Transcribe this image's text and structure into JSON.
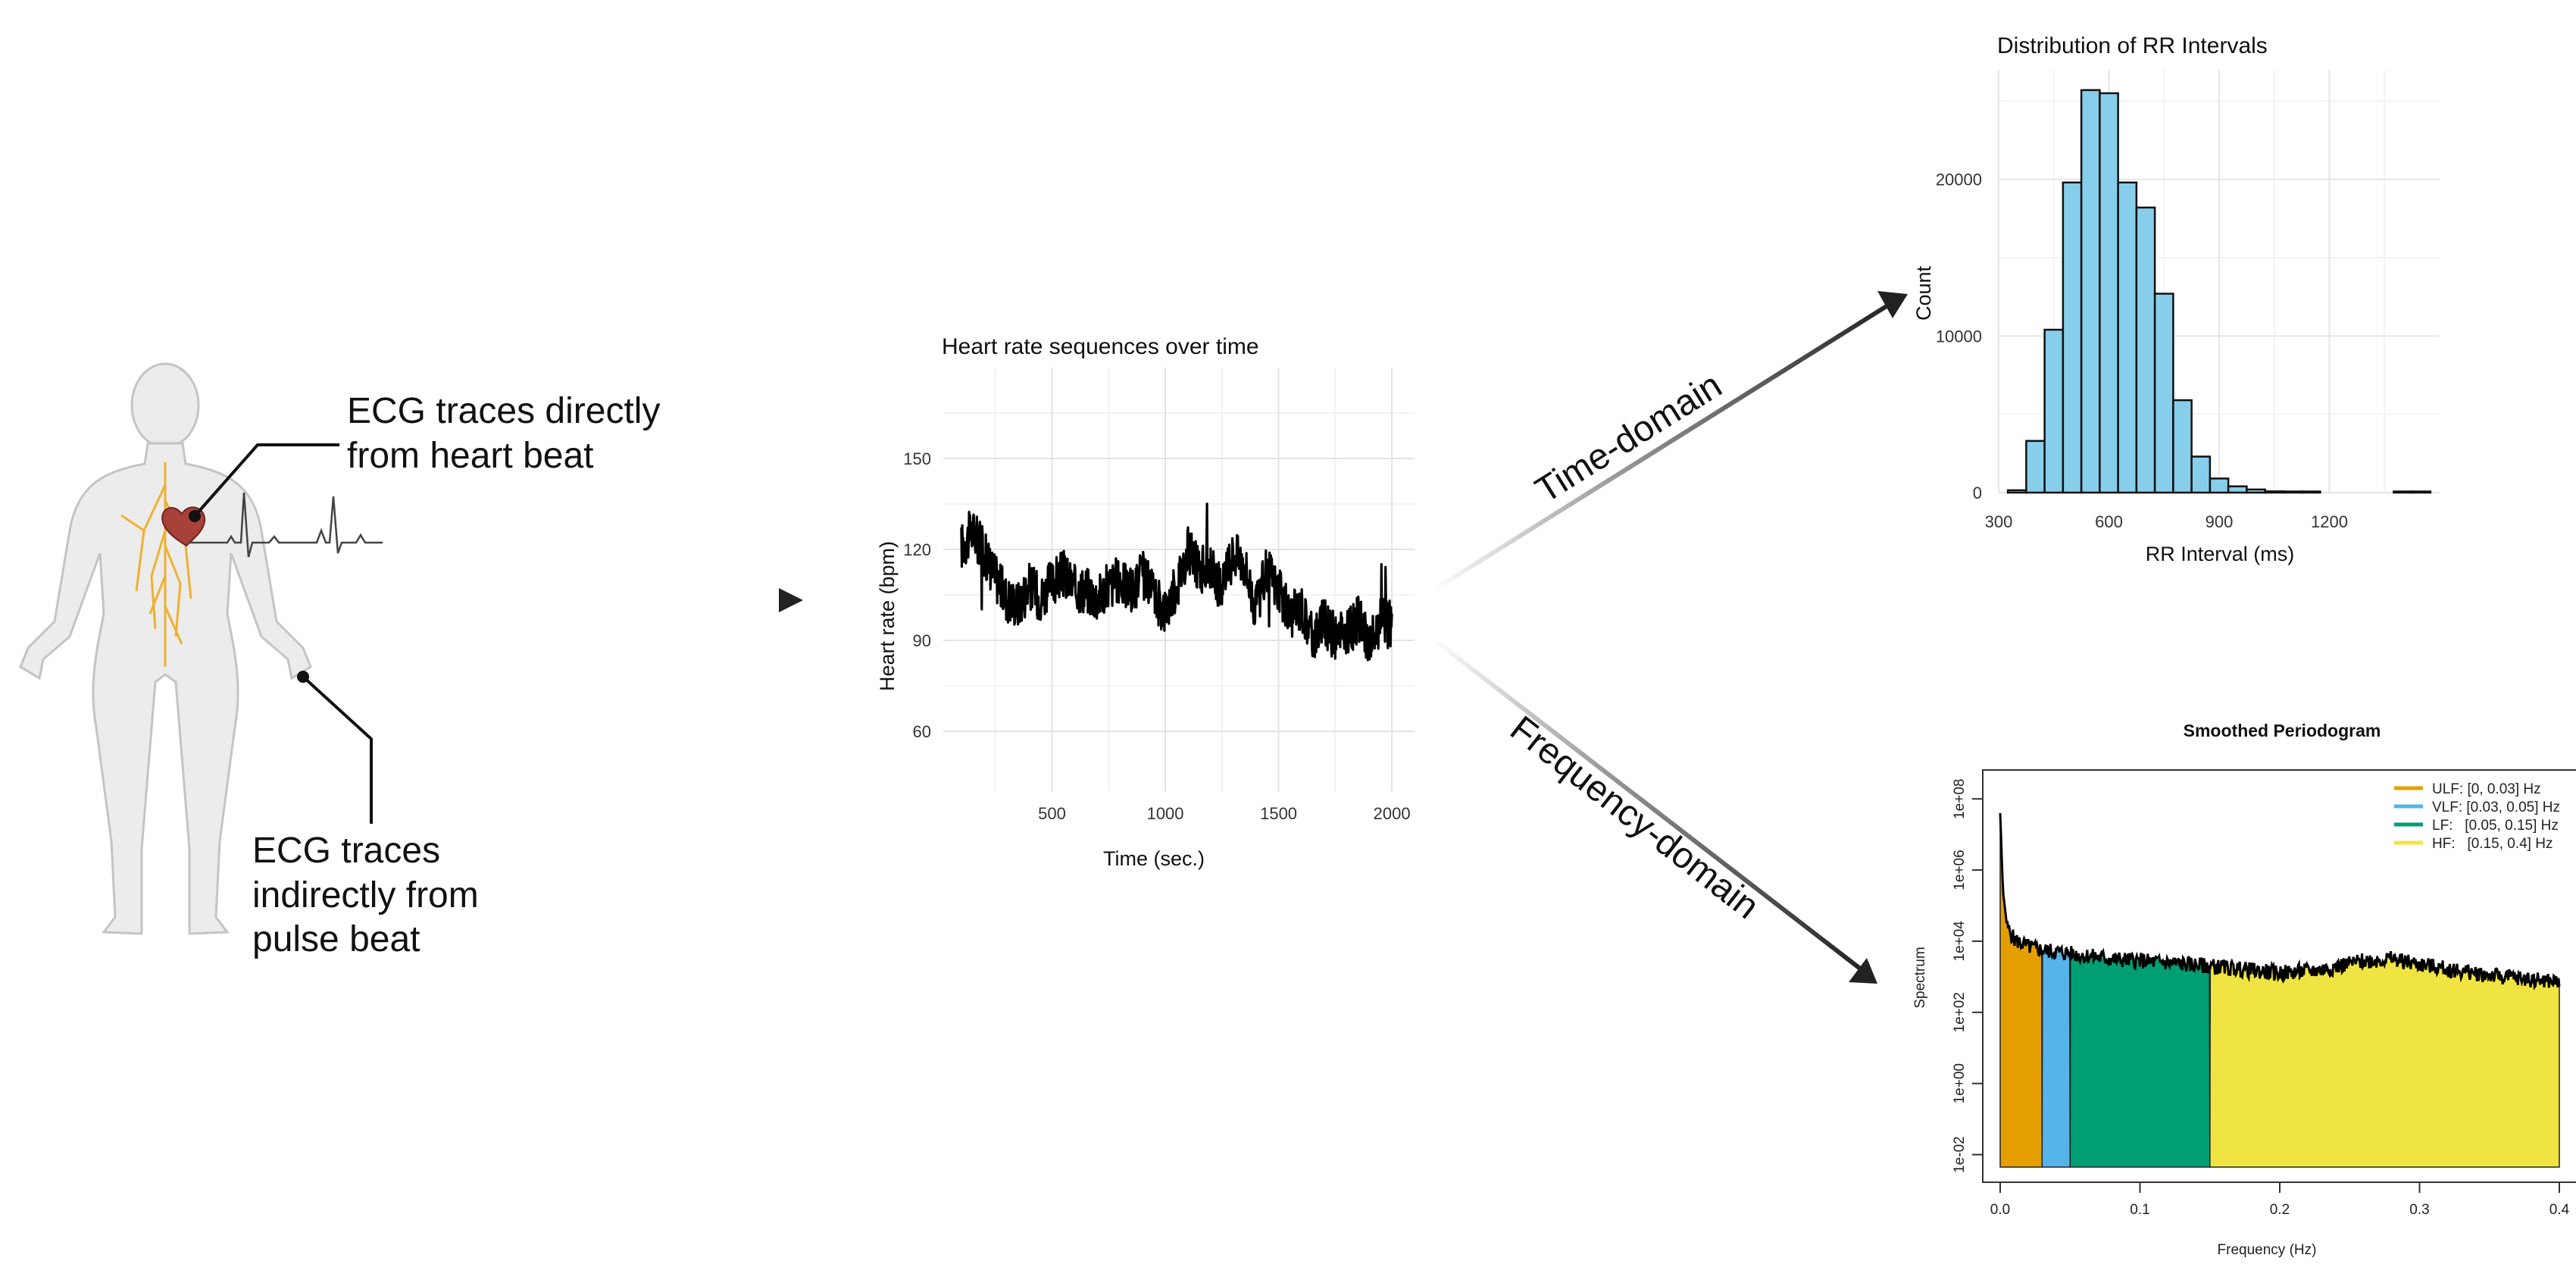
{
  "body_labels": {
    "direct": [
      "ECG traces directly",
      "from heart beat"
    ],
    "indirect": [
      "ECG traces",
      "indirectly from",
      "pulse beat"
    ]
  },
  "arrow_labels": {
    "time_domain": "Time-domain",
    "frequency_domain": "Frequency-domain"
  },
  "chart_data": [
    {
      "type": "line",
      "title": "Heart rate sequences over time",
      "xlabel": "Time (sec.)",
      "ylabel": "Heart rate (bpm)",
      "xlim": [
        20,
        2100
      ],
      "ylim": [
        40,
        180
      ],
      "x_ticks": [
        500,
        1000,
        1500,
        2000
      ],
      "y_ticks": [
        60,
        90,
        120,
        150
      ],
      "grid": true,
      "series": [
        {
          "x": [
            100,
            150,
            200,
            250,
            300,
            350,
            400,
            450,
            500,
            550,
            600,
            650,
            700,
            750,
            800,
            850,
            900,
            950,
            1000,
            1050,
            1100,
            1150,
            1200,
            1250,
            1300,
            1350,
            1400,
            1450,
            1500,
            1550,
            1600,
            1650,
            1700,
            1750,
            1800,
            1850,
            1900,
            1950,
            2000
          ],
          "values": [
            121,
            126,
            119,
            111,
            104,
            102,
            108,
            104,
            109,
            112,
            107,
            107,
            104,
            108,
            110,
            106,
            112,
            104,
            100,
            108,
            120,
            113,
            115,
            106,
            119,
            115,
            100,
            114,
            106,
            98,
            101,
            91,
            96,
            91,
            92,
            97,
            89,
            96,
            95
          ]
        }
      ]
    },
    {
      "type": "bar",
      "title": "Distribution of RR Intervals",
      "xlabel": "RR Interval (ms)",
      "ylabel": "Count",
      "xlim": [
        300,
        1500
      ],
      "ylim": [
        0,
        27000
      ],
      "x_ticks": [
        300,
        600,
        900,
        1200
      ],
      "y_ticks": [
        0,
        10000,
        20000
      ],
      "bin_width": 50,
      "bin_centers": [
        350,
        400,
        450,
        500,
        550,
        600,
        650,
        700,
        750,
        800,
        850,
        900,
        950,
        1000,
        1050,
        1100,
        1150,
        1400,
        1450
      ],
      "values": [
        150,
        3300,
        10400,
        19800,
        25700,
        25500,
        19800,
        18200,
        12700,
        5900,
        2300,
        900,
        400,
        200,
        80,
        60,
        30,
        20,
        20
      ],
      "grid": true
    },
    {
      "type": "area",
      "title": "Smoothed Periodogram",
      "xlabel": "Frequency (Hz)",
      "ylabel": "Spectrum",
      "xlim": [
        0,
        0.4
      ],
      "y_scale": "log",
      "y_ticks": [
        "1e-02",
        "1e+00",
        "1e+02",
        "1e+04",
        "1e+06",
        "1e+08"
      ],
      "x_ticks": [
        "0.0",
        "0.1",
        "0.2",
        "0.3",
        "0.4"
      ],
      "legend_position": "top-right",
      "bands": [
        {
          "name": "ULF: [0, 0.03] Hz",
          "from": 0,
          "to": 0.03,
          "color": "#E69F00"
        },
        {
          "name": "VLF: [0.03, 0.05] Hz",
          "from": 0.03,
          "to": 0.05,
          "color": "#56B4E9"
        },
        {
          "name": "LF:   [0.05, 0.15] Hz",
          "from": 0.05,
          "to": 0.15,
          "color": "#009E73"
        },
        {
          "name": "HF:   [0.15, 0.4] Hz",
          "from": 0.15,
          "to": 0.4,
          "color": "#F0E442"
        }
      ],
      "spectrum_log10": {
        "x": [
          0.0,
          0.002,
          0.005,
          0.01,
          0.02,
          0.03,
          0.05,
          0.08,
          0.1,
          0.15,
          0.2,
          0.23,
          0.26,
          0.28,
          0.3,
          0.33,
          0.36,
          0.4
        ],
        "values": [
          7.6,
          5.4,
          4.4,
          4.05,
          3.85,
          3.75,
          3.65,
          3.5,
          3.45,
          3.3,
          3.1,
          3.2,
          3.45,
          3.5,
          3.35,
          3.15,
          3.0,
          2.85
        ]
      }
    }
  ]
}
